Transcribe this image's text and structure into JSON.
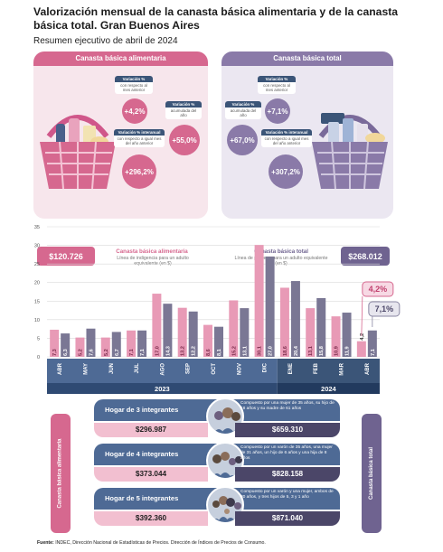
{
  "title": "Valorización mensual de la canasta básica alimentaria y de la canasta básica total. Gran Buenos Aires",
  "subtitle": "Resumen ejecutivo de abril de 2024",
  "left_panel": {
    "header": "Canasta básica alimentaria",
    "tag1_title": "Variación %",
    "tag1_sub": "con respecto al mes anterior",
    "tag1_value": "+4,2%",
    "tag2_title": "Variación %",
    "tag2_sub": "acumulada del año",
    "tag2_value": "+55,0%",
    "tag3_title": "Variación % interanual",
    "tag3_sub": "con respecto a igual mes del año anterior",
    "tag3_value": "+296,2%",
    "amount": "$120.726",
    "summary_title": "Canasta básica alimentaria",
    "summary_sub": "Línea de indigencia para un adulto equivalente (en $)"
  },
  "right_panel": {
    "header": "Canasta básica total",
    "tag1_title": "Variación %",
    "tag1_sub": "con respecto al mes anterior",
    "tag1_value": "+7,1%",
    "tag2_title": "Variación %",
    "tag2_sub": "acumulada del año",
    "tag2_value": "+67,0%",
    "tag3_title": "Variación % interanual",
    "tag3_sub": "con respecto a igual mes del año anterior",
    "tag3_value": "+307,2%",
    "amount": "$268.012",
    "summary_title": "Canasta básica total",
    "summary_sub": "Línea de pobreza para un adulto equivalente (en $)"
  },
  "chart_data": {
    "type": "bar",
    "categories": [
      "ABR",
      "MAY",
      "JUN",
      "JUL",
      "AGO",
      "SEP",
      "OCT",
      "NOV",
      "DIC",
      "ENE",
      "FEB",
      "MAR",
      "ABR"
    ],
    "year_labels": [
      "2023",
      "2024"
    ],
    "series": [
      {
        "values": [
          7.3,
          5.2,
          5.2,
          7.1,
          17.0,
          13.2,
          8.6,
          15.2,
          30.1,
          18.6,
          13.1,
          10.9,
          4.2
        ],
        "value_labels": [
          "7,3",
          "5,2",
          "5,2",
          "7,1",
          "17,0",
          "13,2",
          "8,6",
          "15,2",
          "30,1",
          "18,6",
          "13,1",
          "10,9",
          "4,2"
        ],
        "color": "#e89ab6"
      },
      {
        "values": [
          6.3,
          7.6,
          6.7,
          7.1,
          14.3,
          12.2,
          8.1,
          13.1,
          27.0,
          20.4,
          15.8,
          11.9,
          7.1
        ],
        "value_labels": [
          "6,3",
          "7,6",
          "6,7",
          "7,1",
          "14,3",
          "12,2",
          "8,1",
          "13,1",
          "27,0",
          "20,4",
          "15,8",
          "11,9",
          "7,1"
        ],
        "color": "#7a7794"
      }
    ],
    "ylim": [
      0,
      35
    ],
    "yticks": [
      0,
      5,
      10,
      15,
      20,
      25,
      30,
      35
    ],
    "callouts": [
      "4,2%",
      "7,1%"
    ],
    "grid": true
  },
  "households": {
    "side_left": "Canasta básica alimentaria",
    "side_right": "Canasta básica total",
    "rows": [
      {
        "label": "Hogar de 3 integrantes",
        "desc": "Compuesto por una mujer de 35 años, su hijo de 18 años y su madre de 61 años",
        "cba": "$296.987",
        "cbt": "$659.310"
      },
      {
        "label": "Hogar de 4 integrantes",
        "desc": "Compuesto por un varón de 35 años, una mujer de 31 años, un hijo de 6 años y una hija de 8 años",
        "cba": "$373.044",
        "cbt": "$828.158"
      },
      {
        "label": "Hogar de 5 integrantes",
        "desc": "Compuesto por un varón y una mujer, ambos de 30 años, y tres hijos de 5, 3 y 1 año",
        "cba": "$392.360",
        "cbt": "$871.040"
      }
    ]
  },
  "source_label": "Fuente:",
  "source_text": "INDEC, Dirección Nacional de Estadísticas de Precios. Dirección de Índices de Precios de Consumo.",
  "colors": {
    "pink": "#d6688f",
    "purple": "#8a7aa8",
    "navy": "#3b5578"
  }
}
